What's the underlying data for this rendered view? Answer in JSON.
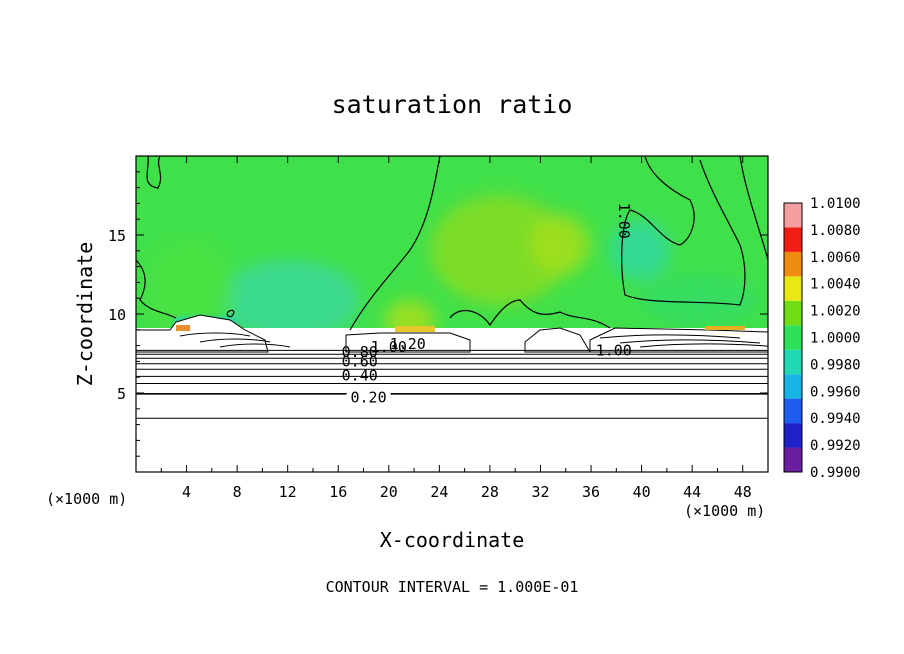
{
  "chart_data": {
    "type": "heatmap",
    "title": "saturation ratio",
    "xlabel": "X-coordinate",
    "ylabel": "Z-coordinate",
    "x_unit_left": "(×1000 m)",
    "x_unit_right": "(×1000 m)",
    "xlim": [
      0,
      50
    ],
    "ylim": [
      0,
      20
    ],
    "x_ticks": [
      4,
      8,
      12,
      16,
      20,
      24,
      28,
      32,
      36,
      40,
      44,
      48
    ],
    "y_ticks": [
      5,
      10,
      15
    ],
    "footer": "CONTOUR INTERVAL = 1.000E-01",
    "colorbar": {
      "levels": [
        "0.9900",
        "0.9920",
        "0.9940",
        "0.9960",
        "0.9980",
        "1.0000",
        "1.0020",
        "1.0040",
        "1.0060",
        "1.0080",
        "1.0100"
      ],
      "colors": [
        "#6a1fa0",
        "#2020c8",
        "#1e5cf0",
        "#18b4e6",
        "#20d8b4",
        "#2ee05a",
        "#72dc14",
        "#e8e814",
        "#f08c10",
        "#f01e14",
        "#f5a0a0"
      ]
    },
    "contour_labels": [
      {
        "text": "0.20",
        "x": 18.4,
        "z": 4.7
      },
      {
        "text": "0.40",
        "x": 17.7,
        "z": 6.1
      },
      {
        "text": "0.60",
        "x": 17.7,
        "z": 7.0
      },
      {
        "text": "0.80",
        "x": 17.7,
        "z": 7.6
      },
      {
        "text": "1.00",
        "x": 20.0,
        "z": 7.9
      },
      {
        "text": "1.20",
        "x": 21.5,
        "z": 8.1
      },
      {
        "text": "1.00",
        "x": 37.8,
        "z": 7.7
      },
      {
        "text": "1.00",
        "x": 38.6,
        "z": 15.9
      }
    ],
    "lower_contour_levels": [
      {
        "z": 3.4,
        "bold": false
      },
      {
        "z": 4.95,
        "bold": true
      },
      {
        "z": 5.6,
        "bold": false
      },
      {
        "z": 6.05,
        "bold": false
      },
      {
        "z": 6.5,
        "bold": false
      },
      {
        "z": 6.85,
        "bold": false
      },
      {
        "z": 7.2,
        "bold": false
      },
      {
        "z": 7.45,
        "bold": false
      },
      {
        "z": 7.7,
        "bold": false
      }
    ]
  }
}
